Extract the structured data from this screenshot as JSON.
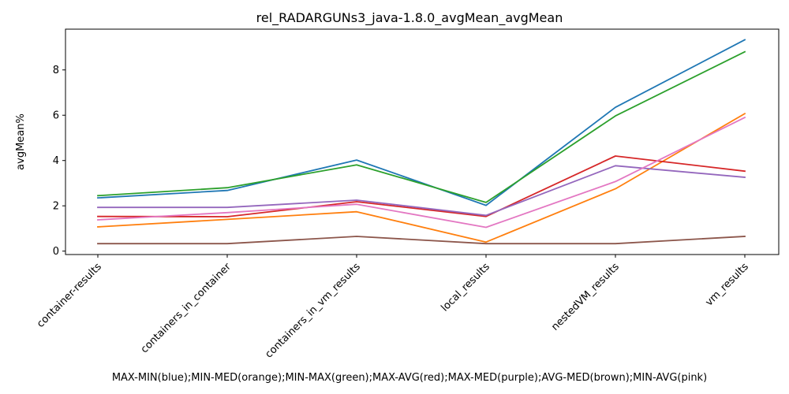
{
  "chart_data": {
    "type": "line",
    "title": "rel_RADARGUNs3_java-1.8.0_avgMean_avgMean",
    "xlabel": "MAX-MIN(blue);MIN-MED(orange);MIN-MAX(green);MAX-AVG(red);MAX-MED(purple);AVG-MED(brown);MIN-AVG(pink)",
    "ylabel": "avgMean%",
    "categories": [
      "container-results",
      "containers_in_container",
      "containers_in_vm_results",
      "local_results",
      "nestedVM_results",
      "vm_results"
    ],
    "ylim": [
      -0.15,
      9.8
    ],
    "yticks": [
      0,
      2,
      4,
      6,
      8
    ],
    "grid": false,
    "legend": "none",
    "series": [
      {
        "color": "#1f77b4",
        "values": [
          2.35,
          2.68,
          4.02,
          2.02,
          6.35,
          9.33
        ]
      },
      {
        "color": "#ff7f0e",
        "values": [
          1.07,
          1.4,
          1.74,
          0.4,
          2.75,
          6.07
        ]
      },
      {
        "color": "#2ca02c",
        "values": [
          2.45,
          2.8,
          3.81,
          2.15,
          5.97,
          8.8
        ]
      },
      {
        "color": "#d62728",
        "values": [
          1.53,
          1.52,
          2.18,
          1.53,
          4.2,
          3.53
        ]
      },
      {
        "color": "#9467bd",
        "values": [
          1.93,
          1.93,
          2.25,
          1.58,
          3.77,
          3.26
        ]
      },
      {
        "color": "#8c564b",
        "values": [
          0.33,
          0.33,
          0.65,
          0.33,
          0.33,
          0.65
        ]
      },
      {
        "color": "#e377c2",
        "values": [
          1.38,
          1.7,
          2.07,
          1.05,
          3.07,
          5.9
        ]
      }
    ]
  }
}
